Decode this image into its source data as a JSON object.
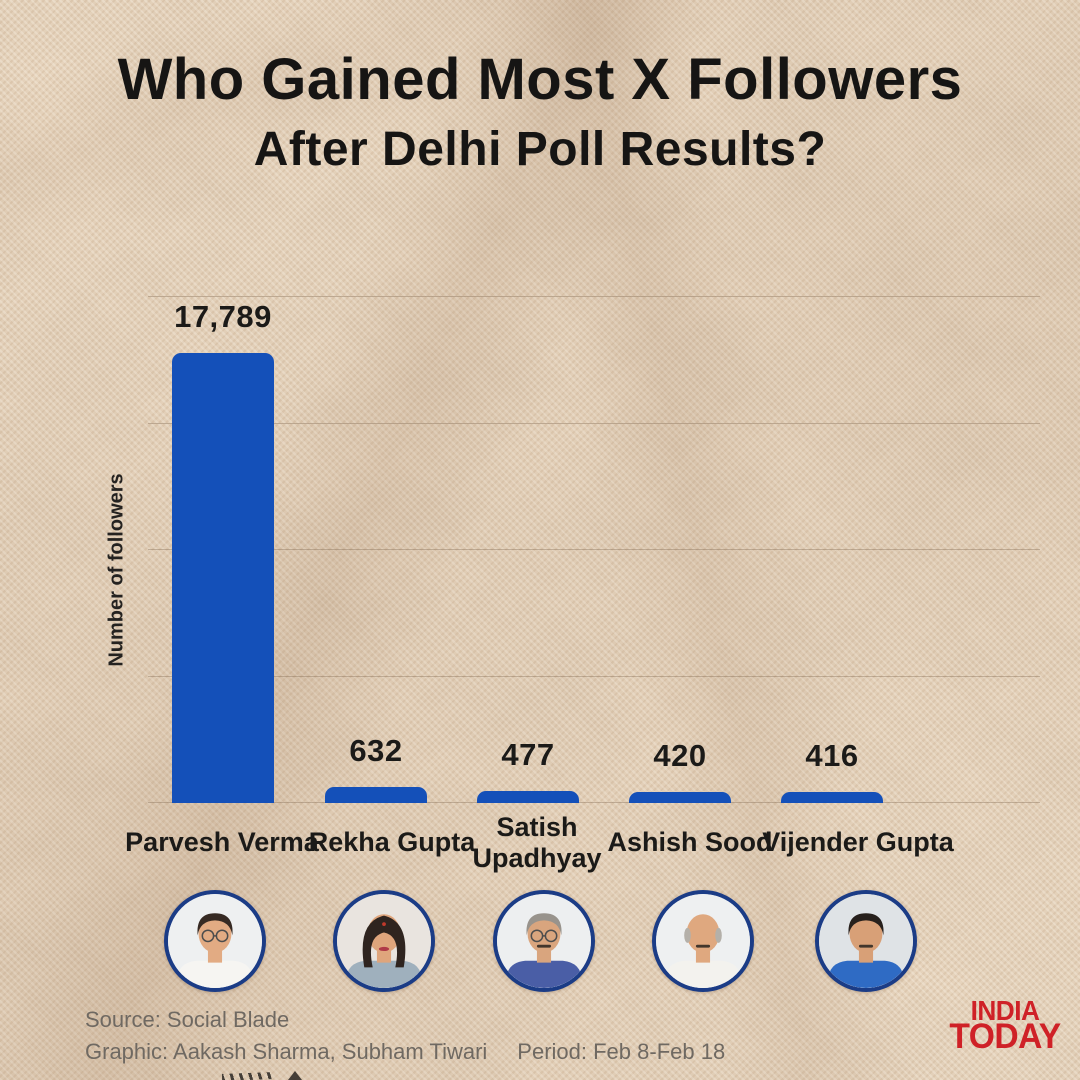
{
  "title": {
    "line1": "Who Gained Most X Followers",
    "line2": "After Delhi Poll Results?"
  },
  "chart_data": {
    "type": "bar",
    "title": "Who Gained Most X Followers After Delhi Poll Results?",
    "categories": [
      "Parvesh Verma",
      "Rekha Gupta",
      "Satish Upadhyay",
      "Ashish Sood",
      "Vijender Gupta"
    ],
    "values": [
      17789,
      632,
      477,
      420,
      416
    ],
    "value_labels": [
      "17,789",
      "632",
      "477",
      "420",
      "416"
    ],
    "xlabel": "",
    "ylabel": "Number of followers",
    "ylim": [
      0,
      20000
    ],
    "gridline_values": [
      0,
      5000,
      10000,
      15000,
      20000
    ],
    "grid": true,
    "legend_position": "none",
    "bar_color": "#1450b9"
  },
  "people": [
    {
      "name": "Parvesh Verma",
      "avatar": {
        "bg": "#eef0f1",
        "skin": "#e2ab83",
        "hair": "#362a23",
        "shirt": "#f6f5f2",
        "glasses": true,
        "female": false,
        "bald": false,
        "mustache": false
      }
    },
    {
      "name": "Rekha Gupta",
      "avatar": {
        "bg": "#e9e4df",
        "skin": "#dfa57c",
        "hair": "#2f241f",
        "shirt": "#9fb0bd",
        "glasses": false,
        "female": true,
        "bald": false,
        "mustache": false
      }
    },
    {
      "name": "Satish Upadhyay",
      "avatar": {
        "bg": "#edeff0",
        "skin": "#d9a57e",
        "hair": "#98938c",
        "shirt": "#4a5ea6",
        "glasses": true,
        "female": false,
        "bald": false,
        "mustache": true
      }
    },
    {
      "name": "Ashish Sood",
      "avatar": {
        "bg": "#eef0f1",
        "skin": "#dfa87f",
        "hair": "#b4b0a9",
        "shirt": "#f3f2ee",
        "glasses": false,
        "female": false,
        "bald": true,
        "mustache": true
      }
    },
    {
      "name": "Vijender Gupta",
      "avatar": {
        "bg": "#dfe3e6",
        "skin": "#d8a077",
        "hair": "#27201c",
        "shirt": "#2f6bc4",
        "glasses": false,
        "female": false,
        "bald": false,
        "mustache": true
      }
    }
  ],
  "footer": {
    "source": "Source: Social Blade",
    "credit": "Graphic: Aakash Sharma, Subham Tiwari",
    "period": "Period:  Feb 8-Feb 18"
  },
  "branding": {
    "line1": "INDIA",
    "line2": "TODAY",
    "color": "#cf2127"
  },
  "colors": {
    "background": "#ebd8c1",
    "bar": "#1450b9",
    "avatar_border": "#1b3c86",
    "title_text": "#161514",
    "muted_text": "#6f6962",
    "gridline": "#80684f"
  }
}
